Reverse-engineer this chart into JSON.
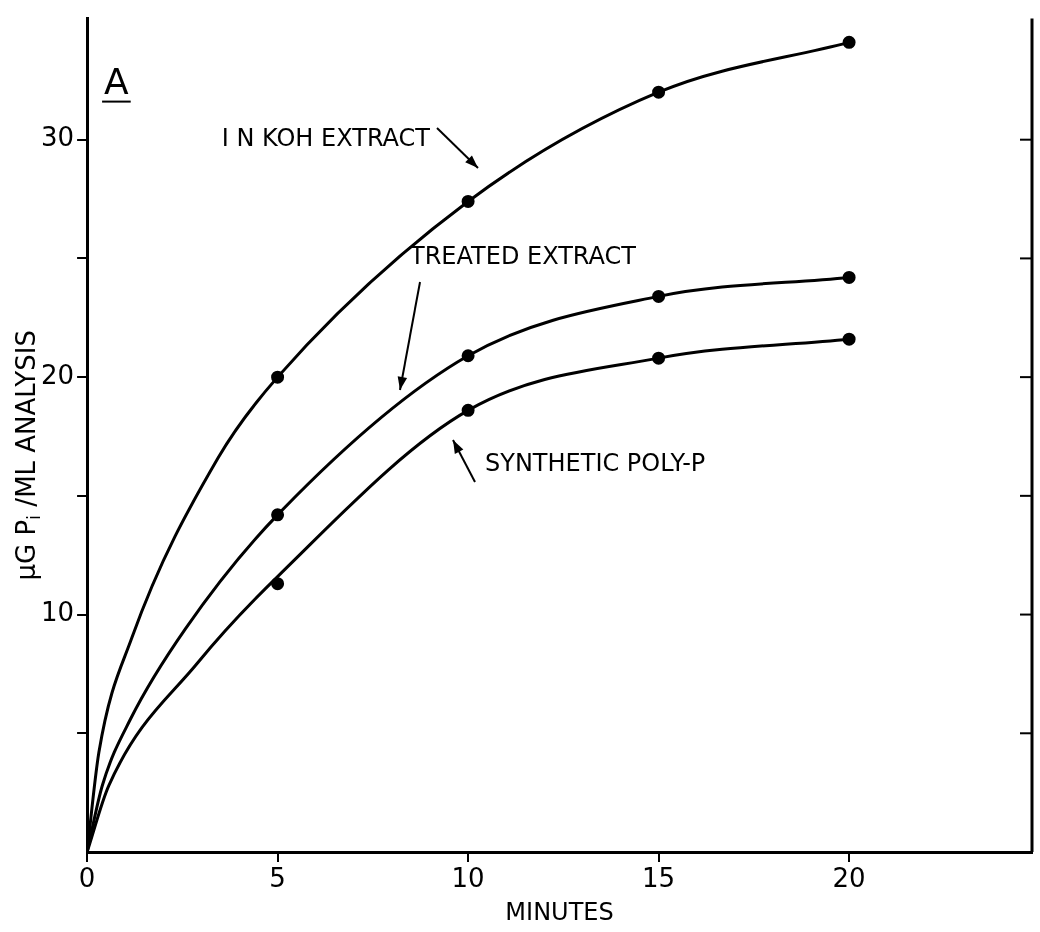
{
  "chart_data": {
    "type": "scatter",
    "title": "A",
    "xlabel": "MINUTES",
    "ylabel": "μG P$_{i}$ /ML ANALYSIS",
    "x": [
      5,
      10,
      15,
      20
    ],
    "series": [
      {
        "color": "#000000",
        "values": [
          20.0,
          27.4,
          32.0,
          34.1
        ]
      },
      {
        "color": "#000000",
        "values": [
          14.2,
          20.9,
          23.4,
          24.2
        ]
      },
      {
        "color": "#000000",
        "values": [
          11.3,
          18.6,
          20.8,
          21.6
        ]
      },
      {
        "type": "line",
        "marker": "none",
        "color": "#000000",
        "x": [
          0,
          0.31,
          1.17,
          3.44,
          5,
          10,
          15,
          20
        ],
        "values": [
          0,
          4.2,
          9.0,
          16.6,
          20.0,
          27.4,
          32.0,
          34.1
        ]
      },
      {
        "type": "line",
        "marker": "none",
        "color": "#000000",
        "x": [
          0,
          0.4,
          1.14,
          2.58,
          5,
          10,
          15,
          20
        ],
        "values": [
          0,
          2.8,
          5.6,
          9.4,
          14.2,
          20.9,
          23.4,
          24.2
        ]
      },
      {
        "type": "line",
        "marker": "none",
        "color": "#000000",
        "x": [
          0,
          0.57,
          2.92,
          5,
          10,
          15,
          20
        ],
        "values": [
          0,
          2.8,
          8.0,
          11.6,
          18.6,
          20.8,
          21.6
        ]
      }
    ],
    "annotations": [
      "I N KOH EXTRACT",
      "TREATED EXTRACT",
      "SYNTHETIC POLY-P"
    ],
    "xlim": [
      0,
      24.8
    ],
    "ylim": [
      0,
      35.1
    ],
    "xticks": [
      0,
      5,
      10,
      15,
      20
    ],
    "yticks": [
      {
        "value": 5,
        "label": null
      },
      10,
      {
        "value": 15,
        "label": null
      },
      20,
      {
        "value": 25,
        "label": null
      },
      30
    ],
    "grid": false,
    "marker": "circle",
    "line_style": "solid"
  }
}
